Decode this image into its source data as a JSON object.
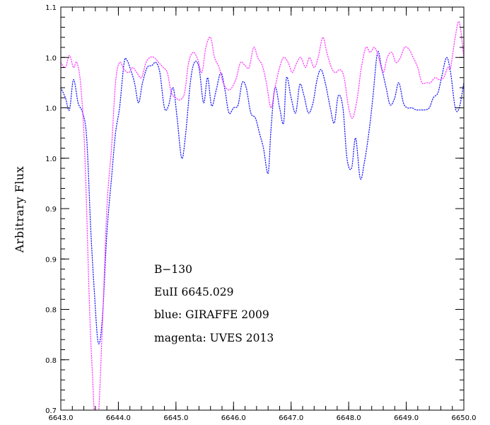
{
  "chart_data": {
    "type": "line",
    "title": "",
    "xlabel": "",
    "ylabel": "Arbitrary Flux",
    "xlim": [
      6643.0,
      6650.0
    ],
    "ylim": [
      0.7,
      1.1
    ],
    "x_ticks": [
      6643.0,
      6644.0,
      6645.0,
      6646.0,
      6647.0,
      6648.0,
      6649.0,
      6650.0
    ],
    "x_tick_labels": [
      "6643.0",
      "6644.0",
      "6645.0",
      "6646.0",
      "6647.0",
      "6648.0",
      "6649.0",
      "6650.0"
    ],
    "y_ticks": [
      0.7,
      0.75,
      0.8,
      0.85,
      0.9,
      0.95,
      1.0,
      1.05,
      1.1
    ],
    "y_tick_labels": [
      "0.7",
      "0.8",
      "0.8",
      "0.9",
      "0.9",
      "1.0",
      "1.0",
      "1.0",
      "1.1"
    ],
    "grid": false,
    "line_style": "dotted",
    "annotations": [
      "B−130",
      "EuII 6645.029",
      "blue: GIRAFFE 2009",
      "magenta: UVES 2013"
    ],
    "series": [
      {
        "color": "#2020ff",
        "x": [
          6643.0,
          6643.08,
          6643.15,
          6643.22,
          6643.3,
          6643.38,
          6643.45,
          6643.52,
          6643.58,
          6643.65,
          6643.72,
          6643.8,
          6643.88,
          6643.95,
          6644.02,
          6644.1,
          6644.15,
          6644.2,
          6644.28,
          6644.35,
          6644.42,
          6644.5,
          6644.58,
          6644.65,
          6644.72,
          6644.8,
          6644.87,
          6644.95,
          6645.02,
          6645.1,
          6645.17,
          6645.25,
          6645.32,
          6645.4,
          6645.48,
          6645.55,
          6645.62,
          6645.7,
          6645.78,
          6645.85,
          6645.92,
          6646.0,
          6646.08,
          6646.15,
          6646.22,
          6646.3,
          6646.38,
          6646.45,
          6646.52,
          6646.6,
          6646.65,
          6646.72,
          6646.8,
          6646.87,
          6646.92,
          6647.0,
          6647.08,
          6647.15,
          6647.22,
          6647.3,
          6647.38,
          6647.45,
          6647.52,
          6647.6,
          6647.68,
          6647.75,
          6647.82,
          6647.9,
          6647.97,
          6648.05,
          6648.12,
          6648.2,
          6648.27,
          6648.35,
          6648.42,
          6648.5,
          6648.57,
          6648.65,
          6648.72,
          6648.8,
          6648.87,
          6648.95,
          6649.02,
          6649.1,
          6649.17,
          6649.25,
          6649.32,
          6649.4,
          6649.47,
          6649.55,
          6649.62,
          6649.7,
          6649.77,
          6649.85,
          6649.92,
          6650.0
        ],
        "y": [
          1.02,
          1.01,
          0.998,
          1.028,
          1.005,
          0.995,
          0.97,
          0.88,
          0.82,
          0.767,
          0.79,
          0.875,
          0.93,
          0.975,
          1.0,
          1.045,
          1.047,
          1.04,
          1.025,
          1.005,
          1.025,
          1.04,
          1.042,
          1.045,
          1.035,
          1.0,
          1.002,
          1.02,
          0.99,
          0.95,
          0.975,
          1.025,
          1.045,
          1.04,
          1.005,
          1.03,
          1.002,
          1.018,
          1.035,
          1.018,
          0.995,
          1.0,
          1.003,
          1.025,
          1.02,
          0.995,
          0.99,
          0.975,
          0.96,
          0.935,
          0.978,
          1.02,
          1.0,
          0.985,
          1.03,
          1.01,
          0.995,
          1.023,
          1.013,
          0.995,
          1.005,
          1.028,
          1.038,
          1.023,
          1.0,
          0.985,
          1.012,
          1.0,
          0.95,
          0.94,
          0.97,
          0.93,
          0.945,
          0.975,
          1.01,
          1.055,
          1.04,
          1.02,
          1.003,
          1.01,
          1.025,
          1.005,
          1.0,
          1.0,
          0.998,
          0.998,
          0.998,
          1.0,
          1.01,
          1.015,
          1.032,
          1.05,
          1.035,
          1.0,
          1.0,
          1.025
        ]
      },
      {
        "color": "#ff40ff",
        "x": [
          6643.0,
          6643.08,
          6643.15,
          6643.22,
          6643.28,
          6643.35,
          6643.42,
          6643.5,
          6643.55,
          6643.6,
          6643.65,
          6643.72,
          6643.8,
          6643.88,
          6643.95,
          6644.02,
          6644.1,
          6644.18,
          6644.25,
          6644.32,
          6644.4,
          6644.48,
          6644.55,
          6644.62,
          6644.7,
          6644.78,
          6644.85,
          6644.92,
          6645.0,
          6645.07,
          6645.15,
          6645.22,
          6645.3,
          6645.38,
          6645.45,
          6645.52,
          6645.6,
          6645.67,
          6645.75,
          6645.82,
          6645.9,
          6645.97,
          6646.05,
          6646.12,
          6646.2,
          6646.27,
          6646.35,
          6646.42,
          6646.5,
          6646.57,
          6646.65,
          6646.72,
          6646.8,
          6646.87,
          6646.95,
          6647.02,
          6647.1,
          6647.17,
          6647.25,
          6647.32,
          6647.4,
          6647.47,
          6647.55,
          6647.62,
          6647.7,
          6647.77,
          6647.85,
          6647.92,
          6648.0,
          6648.07,
          6648.15,
          6648.22,
          6648.3,
          6648.37,
          6648.45,
          6648.52,
          6648.6,
          6648.67,
          6648.75,
          6648.82,
          6648.9,
          6648.97,
          6649.05,
          6649.12,
          6649.2,
          6649.27,
          6649.35,
          6649.42,
          6649.5,
          6649.57,
          6649.65,
          6649.72,
          6649.77,
          6649.85,
          6649.92,
          6650.0
        ],
        "y": [
          1.045,
          1.04,
          1.052,
          1.04,
          1.045,
          1.02,
          0.95,
          0.8,
          0.735,
          0.68,
          0.69,
          0.78,
          0.9,
          0.96,
          1.025,
          1.045,
          1.038,
          1.035,
          1.04,
          1.035,
          1.03,
          1.045,
          1.05,
          1.05,
          1.045,
          1.04,
          1.035,
          1.015,
          1.01,
          1.008,
          1.015,
          1.045,
          1.055,
          1.048,
          1.035,
          1.06,
          1.07,
          1.05,
          1.04,
          1.025,
          1.018,
          1.02,
          1.03,
          1.045,
          1.042,
          1.04,
          1.06,
          1.05,
          1.042,
          1.025,
          1.0,
          1.02,
          1.04,
          1.05,
          1.045,
          1.035,
          1.045,
          1.05,
          1.04,
          1.05,
          1.04,
          1.05,
          1.07,
          1.055,
          1.04,
          1.035,
          1.038,
          1.03,
          1.0,
          0.99,
          1.01,
          1.04,
          1.06,
          1.055,
          1.06,
          1.05,
          1.035,
          1.05,
          1.055,
          1.045,
          1.05,
          1.06,
          1.058,
          1.05,
          1.04,
          1.025,
          1.025,
          1.025,
          1.03,
          1.028,
          1.03,
          1.04,
          1.04,
          1.07,
          1.085,
          1.05
        ]
      }
    ]
  }
}
